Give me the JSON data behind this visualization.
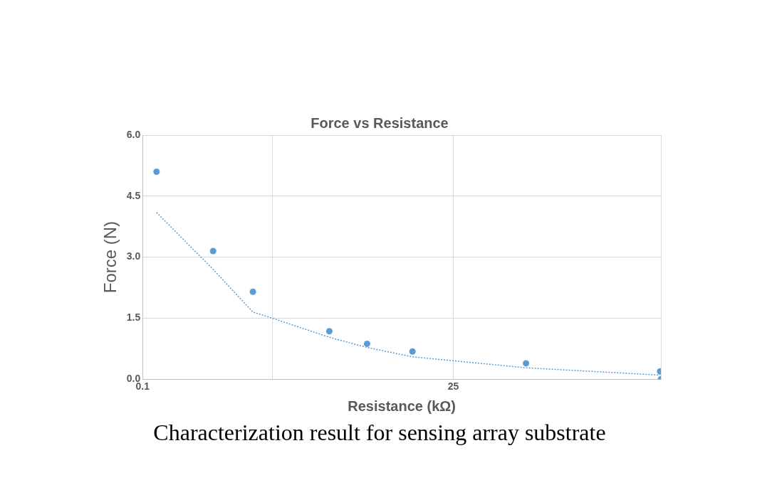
{
  "chart_data": {
    "type": "scatter",
    "title": "Force vs Resistance",
    "xlabel": "Resistance (kΩ)",
    "ylabel": "Force (N)",
    "log": "x",
    "xlim": [
      0.1,
      1000
    ],
    "xticks": [
      0.1,
      {
        "value": 1,
        "label": null
      },
      25,
      {
        "value": 1000,
        "label": null
      }
    ],
    "ylim": [
      0,
      6
    ],
    "yticks": [
      {
        "value": 0,
        "label": "0.0"
      },
      {
        "value": 1.5,
        "label": "1.5"
      },
      {
        "value": 3,
        "label": "3.0"
      },
      {
        "value": 4.5,
        "label": "4.5"
      },
      {
        "value": 6,
        "label": "6.0"
      }
    ],
    "grid": true,
    "legend": false,
    "marker": "circle",
    "series": [
      {
        "color": "#5b9bd5",
        "x": [
          0.128,
          0.35,
          0.71,
          2.76,
          5.4,
          12.1,
          91,
          986,
          1000
        ],
        "values": [
          5.1,
          3.15,
          2.15,
          1.18,
          0.87,
          0.68,
          0.39,
          0.19,
          0.0
        ]
      },
      {
        "type": "line",
        "line_style": "dotted",
        "marker": "none",
        "color": "#5b9bd5",
        "x": [
          0.128,
          0.35,
          0.71,
          1,
          2.76,
          5.4,
          12.1,
          91,
          986
        ],
        "values": [
          4.1,
          2.7,
          1.65,
          1.5,
          1.03,
          0.78,
          0.55,
          0.28,
          0.1
        ]
      }
    ],
    "annotations": [
      "Characterization result for sensing array substrate"
    ]
  }
}
